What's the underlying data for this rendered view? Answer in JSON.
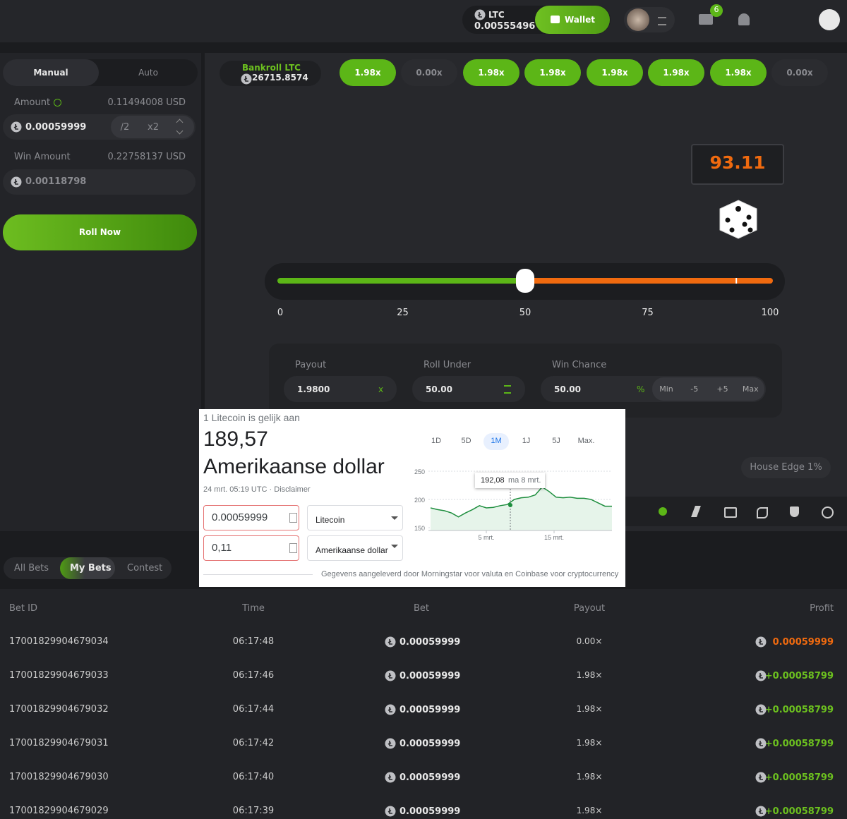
{
  "topbar": {
    "currency": "LTC",
    "balance": "0.00555496",
    "wallet": "Wallet",
    "notifications": "6"
  },
  "bet_panel": {
    "tabs": [
      "Manual",
      "Auto"
    ],
    "amount_label": "Amount",
    "amount_usd": "0.11494008 USD",
    "amount": "0.00059999",
    "half": "/2",
    "double": "x2",
    "win_amount_label": "Win Amount",
    "win_amount_usd": "0.22758137 USD",
    "win_amount": "0.00118798",
    "roll_button": "Roll Now"
  },
  "game": {
    "bankroll_label": "Bankroll LTC",
    "bankroll": "26715.8574",
    "history": [
      {
        "label": "1.98x",
        "color": "#5cb617"
      },
      {
        "label": "0.00x",
        "color": "#2b2c30"
      },
      {
        "label": "1.98x",
        "color": "#5cb617"
      },
      {
        "label": "1.98x",
        "color": "#5cb617"
      },
      {
        "label": "1.98x",
        "color": "#5cb617"
      },
      {
        "label": "1.98x",
        "color": "#5cb617"
      },
      {
        "label": "1.98x",
        "color": "#5cb617"
      },
      {
        "label": "0.00x",
        "color": "#2b2c30"
      }
    ],
    "result": 93.11,
    "slider": {
      "range": [
        0,
        100
      ],
      "ticks": [
        0,
        25,
        50,
        75,
        100
      ],
      "value": 50,
      "under_color": "#5cb617",
      "over_color": "#f06a0f"
    },
    "payout_label": "Payout",
    "payout": "1.9800",
    "payout_unit": "x",
    "roll_under_label": "Roll Under",
    "roll_under": "50.00",
    "win_chance_label": "Win Chance",
    "win_chance": "50.00",
    "win_chance_unit": "%",
    "chance_buttons": [
      "Min",
      "-5",
      "+5",
      "Max"
    ],
    "house_edge": "House Edge 1%"
  },
  "converter": {
    "title": "1 Litecoin is gelijk aan",
    "rate": "189,57",
    "currency": "Amerikaanse dollar",
    "timestamp": "24 mrt. 05:19 UTC · ",
    "disclaimer": "Disclaimer",
    "input_from": "0.00059999",
    "select_from": "Litecoin",
    "input_to": "0,11",
    "select_to": "Amerikaanse dollar",
    "ranges": [
      "1D",
      "5D",
      "1M",
      "1J",
      "5J",
      "Max."
    ],
    "active_range": "1M",
    "chart": {
      "type": "line",
      "values": [
        185,
        182,
        180,
        176,
        169,
        176,
        182,
        189,
        185,
        186,
        189,
        191,
        200,
        203,
        204,
        208,
        222,
        214,
        204,
        203,
        204,
        202,
        202,
        200,
        194,
        188,
        188
      ],
      "color": "#1e8e3e",
      "ylim": [
        145,
        260
      ],
      "yticks": [
        150,
        200,
        250
      ],
      "grid": true,
      "xlabels": [
        "5 mrt.",
        "15 mrt."
      ],
      "tooltip_value": "192,08",
      "tooltip_date": "ma 8 mrt."
    },
    "footer": "Gegevens aangeleverd door Morningstar voor valuta en Coinbase voor cryptocurrency"
  },
  "bets": {
    "tabs": [
      "All Bets",
      "My Bets",
      "Contest"
    ],
    "columns": [
      "Bet ID",
      "Time",
      "Bet",
      "Payout",
      "Profit"
    ],
    "rows": [
      {
        "id": "17001829904679034",
        "time": "06:17:48",
        "bet": "0.00059999",
        "payout": "0.00×",
        "profit": "0.00059999",
        "profit_color": "#f06a0f"
      },
      {
        "id": "17001829904679033",
        "time": "06:17:46",
        "bet": "0.00059999",
        "payout": "1.98×",
        "profit": "+0.00058799",
        "profit_color": "#6cc01f"
      },
      {
        "id": "17001829904679032",
        "time": "06:17:44",
        "bet": "0.00059999",
        "payout": "1.98×",
        "profit": "+0.00058799",
        "profit_color": "#6cc01f"
      },
      {
        "id": "17001829904679031",
        "time": "06:17:42",
        "bet": "0.00059999",
        "payout": "1.98×",
        "profit": "+0.00058799",
        "profit_color": "#6cc01f"
      },
      {
        "id": "17001829904679030",
        "time": "06:17:40",
        "bet": "0.00059999",
        "payout": "1.98×",
        "profit": "+0.00058799",
        "profit_color": "#6cc01f"
      },
      {
        "id": "17001829904679029",
        "time": "06:17:39",
        "bet": "0.00059999",
        "payout": "1.98×",
        "profit": "+0.00058799",
        "profit_color": "#6cc01f"
      }
    ]
  }
}
